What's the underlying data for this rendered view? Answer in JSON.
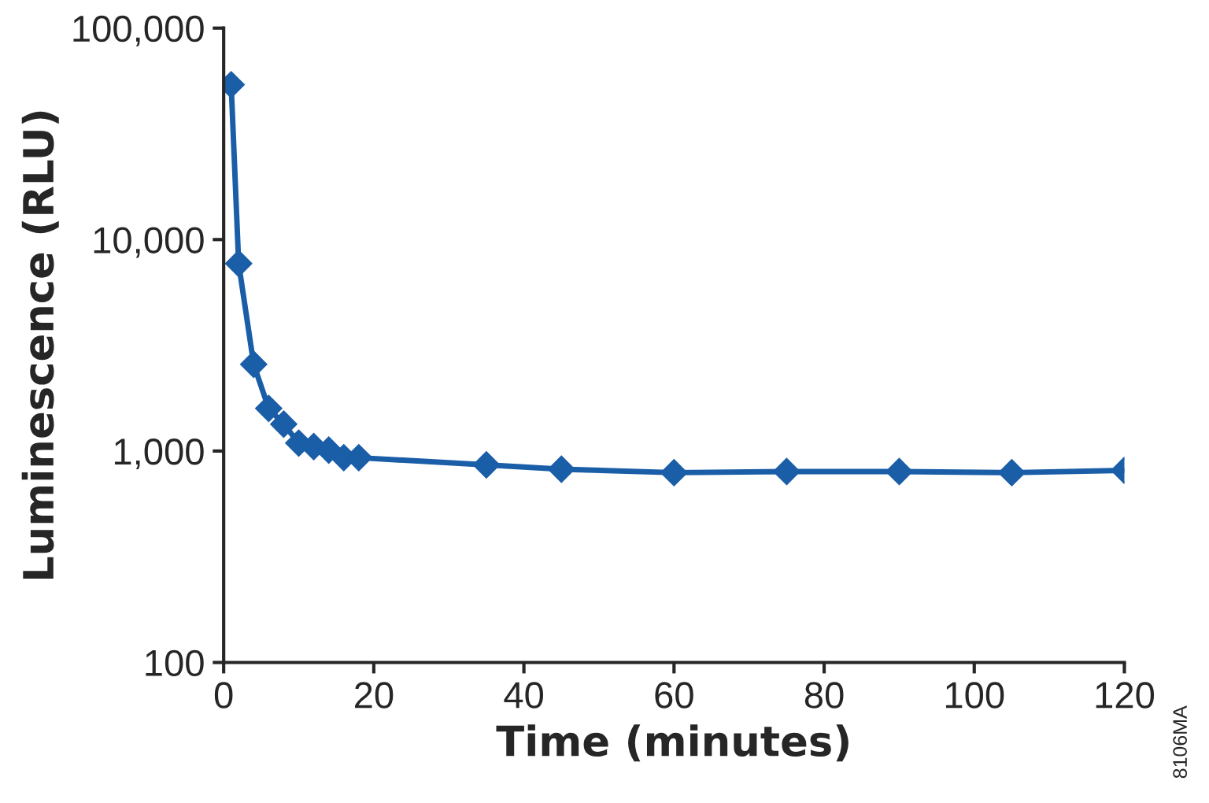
{
  "chart_data": {
    "type": "line",
    "xlabel": "Time (minutes)",
    "ylabel": "Luminescence (RLU)",
    "x": [
      1,
      2,
      4,
      6,
      8,
      10,
      12,
      14,
      16,
      18,
      35,
      45,
      60,
      75,
      90,
      105,
      120
    ],
    "series": [
      {
        "color": "#1a5ea8",
        "values": [
          54000,
          7700,
          2570,
          1590,
          1340,
          1090,
          1050,
          1010,
          930,
          930,
          860,
          820,
          790,
          800,
          800,
          790,
          810
        ]
      }
    ],
    "log": "y",
    "xlim": [
      0,
      120
    ],
    "xticks": [
      0,
      20,
      40,
      60,
      80,
      100,
      120
    ],
    "ylim": [
      100,
      100000
    ],
    "yticks": [
      {
        "value": 100,
        "label": "100"
      },
      {
        "value": 1000,
        "label": "1,000"
      },
      {
        "value": 10000,
        "label": "10,000"
      },
      {
        "value": 100000,
        "label": "100,000"
      }
    ],
    "grid": false,
    "legend": false,
    "marker": "diamond",
    "line_style": "solid",
    "annotations": [
      "8106MA"
    ]
  }
}
